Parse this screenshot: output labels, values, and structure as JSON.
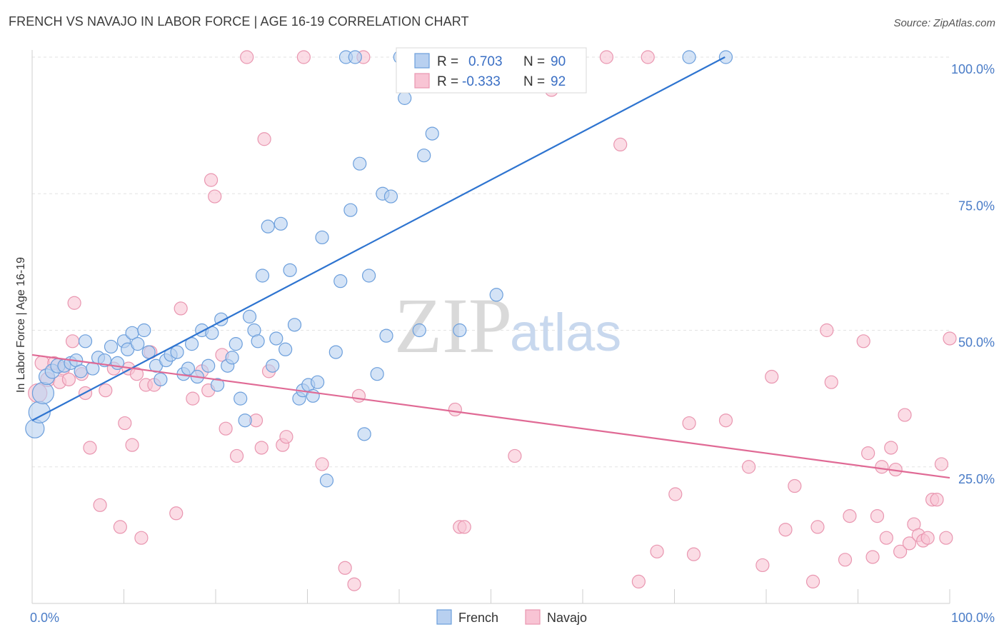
{
  "title": "FRENCH VS NAVAJO IN LABOR FORCE | AGE 16-19 CORRELATION CHART",
  "source": "Source: ZipAtlas.com",
  "watermark": {
    "zip": "ZIP",
    "atlas": "atlas"
  },
  "colors": {
    "french_fill": "#b8d0f0",
    "french_stroke": "#6c9fdc",
    "french_line": "#2e74d0",
    "navajo_fill": "#f8c4d4",
    "navajo_stroke": "#e996b0",
    "navajo_line": "#e06a95",
    "grid": "#e3e3e3",
    "tick_label": "#4a7cc7"
  },
  "legend_box": {
    "french": {
      "r_label": "R =",
      "r_value": "0.703",
      "n_label": "N =",
      "n_value": "90"
    },
    "navajo": {
      "r_label": "R =",
      "r_value": "-0.333",
      "n_label": "N =",
      "n_value": "92"
    }
  },
  "chart_data": {
    "type": "scatter",
    "title": "FRENCH VS NAVAJO IN LABOR FORCE | AGE 16-19 CORRELATION CHART",
    "xlabel": "",
    "ylabel": "In Labor Force | Age 16-19",
    "xlim": [
      0,
      100
    ],
    "ylim": [
      0,
      100
    ],
    "x_tick_labels": [
      {
        "value": 0,
        "label": "0.0%"
      },
      {
        "value": 100,
        "label": "100.0%"
      }
    ],
    "y_tick_labels": [
      {
        "value": 25,
        "label": "25.0%"
      },
      {
        "value": 50,
        "label": "50.0%"
      },
      {
        "value": 75,
        "label": "75.0%"
      },
      {
        "value": 100,
        "label": "100.0%"
      }
    ],
    "grid": true,
    "legend_position": "bottom",
    "series": [
      {
        "name": "French",
        "trend": {
          "x": [
            0,
            75.5
          ],
          "y": [
            33.5,
            100
          ]
        },
        "points": [
          {
            "x": 0.3,
            "y": 32,
            "s": 12
          },
          {
            "x": 0.8,
            "y": 35,
            "s": 14
          },
          {
            "x": 1.2,
            "y": 38.5,
            "s": 14
          },
          {
            "x": 1.6,
            "y": 41.5,
            "s": 10
          },
          {
            "x": 2.2,
            "y": 42.5,
            "s": 9
          },
          {
            "x": 2.8,
            "y": 43.5,
            "s": 9
          },
          {
            "x": 3.5,
            "y": 43.5,
            "s": 8
          },
          {
            "x": 4.2,
            "y": 44,
            "s": 8
          },
          {
            "x": 4.8,
            "y": 44.5,
            "s": 8
          },
          {
            "x": 5.3,
            "y": 42.5,
            "s": 8
          },
          {
            "x": 5.8,
            "y": 48,
            "s": 8
          },
          {
            "x": 6.6,
            "y": 43,
            "s": 8
          },
          {
            "x": 7.2,
            "y": 45,
            "s": 8
          },
          {
            "x": 7.9,
            "y": 44.5,
            "s": 8
          },
          {
            "x": 8.6,
            "y": 47,
            "s": 8
          },
          {
            "x": 9.3,
            "y": 44,
            "s": 8
          },
          {
            "x": 10,
            "y": 48,
            "s": 8
          },
          {
            "x": 10.4,
            "y": 46.5,
            "s": 8
          },
          {
            "x": 10.9,
            "y": 49.5,
            "s": 8
          },
          {
            "x": 11.5,
            "y": 47.5,
            "s": 8
          },
          {
            "x": 12.2,
            "y": 50,
            "s": 8
          },
          {
            "x": 12.7,
            "y": 46,
            "s": 8
          },
          {
            "x": 13.5,
            "y": 43.5,
            "s": 8
          },
          {
            "x": 14,
            "y": 41,
            "s": 8
          },
          {
            "x": 14.6,
            "y": 44.5,
            "s": 8
          },
          {
            "x": 15.1,
            "y": 45.5,
            "s": 8
          },
          {
            "x": 15.8,
            "y": 46,
            "s": 8
          },
          {
            "x": 16.5,
            "y": 42,
            "s": 8
          },
          {
            "x": 17,
            "y": 43,
            "s": 8
          },
          {
            "x": 17.4,
            "y": 47.5,
            "s": 8
          },
          {
            "x": 18,
            "y": 41.5,
            "s": 8
          },
          {
            "x": 18.5,
            "y": 50,
            "s": 8
          },
          {
            "x": 19.2,
            "y": 43.5,
            "s": 8
          },
          {
            "x": 19.6,
            "y": 49.5,
            "s": 8
          },
          {
            "x": 20.2,
            "y": 40,
            "s": 8
          },
          {
            "x": 20.6,
            "y": 52,
            "s": 8
          },
          {
            "x": 21.3,
            "y": 43.5,
            "s": 8
          },
          {
            "x": 21.8,
            "y": 45,
            "s": 8
          },
          {
            "x": 22.2,
            "y": 47.5,
            "s": 8
          },
          {
            "x": 22.7,
            "y": 37.5,
            "s": 8
          },
          {
            "x": 23.2,
            "y": 33.5,
            "s": 8
          },
          {
            "x": 23.7,
            "y": 52.5,
            "s": 8
          },
          {
            "x": 24.2,
            "y": 50,
            "s": 8
          },
          {
            "x": 24.6,
            "y": 48,
            "s": 8
          },
          {
            "x": 25.1,
            "y": 60,
            "s": 8
          },
          {
            "x": 25.7,
            "y": 69,
            "s": 8
          },
          {
            "x": 26.2,
            "y": 43.5,
            "s": 8
          },
          {
            "x": 26.6,
            "y": 48.5,
            "s": 8
          },
          {
            "x": 27.1,
            "y": 69.5,
            "s": 8
          },
          {
            "x": 27.6,
            "y": 46.5,
            "s": 8
          },
          {
            "x": 28.1,
            "y": 61,
            "s": 8
          },
          {
            "x": 28.6,
            "y": 51,
            "s": 8
          },
          {
            "x": 29.1,
            "y": 37.5,
            "s": 8
          },
          {
            "x": 29.5,
            "y": 39,
            "s": 8
          },
          {
            "x": 30.1,
            "y": 40,
            "s": 8
          },
          {
            "x": 30.6,
            "y": 38,
            "s": 8
          },
          {
            "x": 31.1,
            "y": 40.5,
            "s": 8
          },
          {
            "x": 31.6,
            "y": 67,
            "s": 8
          },
          {
            "x": 32.1,
            "y": 22.5,
            "s": 8
          },
          {
            "x": 33.1,
            "y": 46,
            "s": 8
          },
          {
            "x": 33.6,
            "y": 59,
            "s": 8
          },
          {
            "x": 34.2,
            "y": 100,
            "s": 8
          },
          {
            "x": 34.7,
            "y": 72,
            "s": 8
          },
          {
            "x": 35.2,
            "y": 100,
            "s": 8
          },
          {
            "x": 35.7,
            "y": 80.5,
            "s": 8
          },
          {
            "x": 36.2,
            "y": 31,
            "s": 8
          },
          {
            "x": 36.7,
            "y": 60,
            "s": 8
          },
          {
            "x": 37.6,
            "y": 42,
            "s": 8
          },
          {
            "x": 38.2,
            "y": 75,
            "s": 8
          },
          {
            "x": 38.6,
            "y": 49,
            "s": 8
          },
          {
            "x": 39.1,
            "y": 74.5,
            "s": 8
          },
          {
            "x": 40.1,
            "y": 100,
            "s": 8
          },
          {
            "x": 40.6,
            "y": 92.5,
            "s": 8
          },
          {
            "x": 41.1,
            "y": 100,
            "s": 8
          },
          {
            "x": 41.6,
            "y": 100,
            "s": 8
          },
          {
            "x": 42.2,
            "y": 50,
            "s": 8
          },
          {
            "x": 42.7,
            "y": 82,
            "s": 8
          },
          {
            "x": 43.1,
            "y": 100,
            "s": 8
          },
          {
            "x": 43.6,
            "y": 86,
            "s": 8
          },
          {
            "x": 44.6,
            "y": 100,
            "s": 8
          },
          {
            "x": 45.1,
            "y": 100,
            "s": 8
          },
          {
            "x": 46.1,
            "y": 100,
            "s": 8
          },
          {
            "x": 46.6,
            "y": 50,
            "s": 8
          },
          {
            "x": 48.6,
            "y": 100,
            "s": 8
          },
          {
            "x": 50.6,
            "y": 56.5,
            "s": 8
          },
          {
            "x": 52.6,
            "y": 100,
            "s": 8
          },
          {
            "x": 55.1,
            "y": 100,
            "s": 8
          },
          {
            "x": 56.1,
            "y": 100,
            "s": 8
          },
          {
            "x": 71.6,
            "y": 100,
            "s": 8
          },
          {
            "x": 75.6,
            "y": 100,
            "s": 8
          }
        ]
      },
      {
        "name": "Navajo",
        "trend": {
          "x": [
            0,
            100
          ],
          "y": [
            45.5,
            23
          ]
        },
        "points": [
          {
            "x": 0.6,
            "y": 38.5,
            "s": 12
          },
          {
            "x": 1.1,
            "y": 44,
            "s": 9
          },
          {
            "x": 1.7,
            "y": 41,
            "s": 9
          },
          {
            "x": 2.4,
            "y": 44,
            "s": 8
          },
          {
            "x": 3,
            "y": 40.5,
            "s": 8
          },
          {
            "x": 3.4,
            "y": 43,
            "s": 8
          },
          {
            "x": 4,
            "y": 41,
            "s": 8
          },
          {
            "x": 4.4,
            "y": 48,
            "s": 8
          },
          {
            "x": 4.6,
            "y": 55,
            "s": 8
          },
          {
            "x": 5.4,
            "y": 42,
            "s": 8
          },
          {
            "x": 5.8,
            "y": 38.5,
            "s": 8
          },
          {
            "x": 6.3,
            "y": 28.5,
            "s": 8
          },
          {
            "x": 7.4,
            "y": 18,
            "s": 8
          },
          {
            "x": 8,
            "y": 39,
            "s": 8
          },
          {
            "x": 8.9,
            "y": 43,
            "s": 8
          },
          {
            "x": 9.6,
            "y": 14,
            "s": 8
          },
          {
            "x": 10.1,
            "y": 33,
            "s": 8
          },
          {
            "x": 10.5,
            "y": 43,
            "s": 8
          },
          {
            "x": 10.9,
            "y": 29,
            "s": 8
          },
          {
            "x": 11.4,
            "y": 42,
            "s": 8
          },
          {
            "x": 11.9,
            "y": 12,
            "s": 8
          },
          {
            "x": 12.4,
            "y": 40,
            "s": 8
          },
          {
            "x": 12.9,
            "y": 46,
            "s": 8
          },
          {
            "x": 13.3,
            "y": 40,
            "s": 8
          },
          {
            "x": 15.7,
            "y": 16.5,
            "s": 8
          },
          {
            "x": 16.2,
            "y": 54,
            "s": 8
          },
          {
            "x": 17.5,
            "y": 37.5,
            "s": 8
          },
          {
            "x": 18.5,
            "y": 42.5,
            "s": 8
          },
          {
            "x": 19.2,
            "y": 39,
            "s": 8
          },
          {
            "x": 19.5,
            "y": 77.5,
            "s": 8
          },
          {
            "x": 19.9,
            "y": 74.5,
            "s": 8
          },
          {
            "x": 20.7,
            "y": 45.5,
            "s": 8
          },
          {
            "x": 21.1,
            "y": 32,
            "s": 8
          },
          {
            "x": 22.3,
            "y": 27,
            "s": 8
          },
          {
            "x": 23.4,
            "y": 100,
            "s": 8
          },
          {
            "x": 24.4,
            "y": 33.5,
            "s": 8
          },
          {
            "x": 25,
            "y": 28.5,
            "s": 8
          },
          {
            "x": 25.3,
            "y": 85,
            "s": 8
          },
          {
            "x": 25.8,
            "y": 42.5,
            "s": 8
          },
          {
            "x": 27.3,
            "y": 29,
            "s": 8
          },
          {
            "x": 27.7,
            "y": 30.5,
            "s": 8
          },
          {
            "x": 29.6,
            "y": 100,
            "s": 8
          },
          {
            "x": 31.6,
            "y": 25.5,
            "s": 8
          },
          {
            "x": 34.1,
            "y": 6.5,
            "s": 8
          },
          {
            "x": 35.1,
            "y": 3.5,
            "s": 8
          },
          {
            "x": 35.6,
            "y": 38,
            "s": 8
          },
          {
            "x": 36.1,
            "y": 100,
            "s": 8
          },
          {
            "x": 46.1,
            "y": 35.5,
            "s": 8
          },
          {
            "x": 46.6,
            "y": 14,
            "s": 8
          },
          {
            "x": 47.1,
            "y": 14,
            "s": 8
          },
          {
            "x": 52.6,
            "y": 27,
            "s": 8
          },
          {
            "x": 56.6,
            "y": 94,
            "s": 8
          },
          {
            "x": 62.6,
            "y": 100,
            "s": 8
          },
          {
            "x": 64.1,
            "y": 84,
            "s": 8
          },
          {
            "x": 66.1,
            "y": 4,
            "s": 8
          },
          {
            "x": 67.1,
            "y": 100,
            "s": 8
          },
          {
            "x": 68.1,
            "y": 9.5,
            "s": 8
          },
          {
            "x": 70.1,
            "y": 20,
            "s": 8
          },
          {
            "x": 71.6,
            "y": 33,
            "s": 8
          },
          {
            "x": 72.1,
            "y": 9,
            "s": 8
          },
          {
            "x": 75.6,
            "y": 33.5,
            "s": 8
          },
          {
            "x": 78.1,
            "y": 25,
            "s": 8
          },
          {
            "x": 79.6,
            "y": 7,
            "s": 8
          },
          {
            "x": 80.6,
            "y": 41.5,
            "s": 8
          },
          {
            "x": 82.1,
            "y": 13.5,
            "s": 8
          },
          {
            "x": 83.1,
            "y": 21.5,
            "s": 8
          },
          {
            "x": 85.1,
            "y": 4,
            "s": 8
          },
          {
            "x": 85.6,
            "y": 14,
            "s": 8
          },
          {
            "x": 86.6,
            "y": 50,
            "s": 8
          },
          {
            "x": 87.1,
            "y": 40.5,
            "s": 8
          },
          {
            "x": 88.6,
            "y": 8,
            "s": 8
          },
          {
            "x": 89.1,
            "y": 16,
            "s": 8
          },
          {
            "x": 90.6,
            "y": 48,
            "s": 8
          },
          {
            "x": 91.1,
            "y": 27.5,
            "s": 8
          },
          {
            "x": 91.6,
            "y": 8.5,
            "s": 8
          },
          {
            "x": 92.1,
            "y": 16,
            "s": 8
          },
          {
            "x": 92.6,
            "y": 25,
            "s": 8
          },
          {
            "x": 93.1,
            "y": 12,
            "s": 8
          },
          {
            "x": 93.6,
            "y": 28.5,
            "s": 8
          },
          {
            "x": 94.1,
            "y": 24.5,
            "s": 8
          },
          {
            "x": 94.6,
            "y": 9.5,
            "s": 8
          },
          {
            "x": 95.1,
            "y": 34.5,
            "s": 8
          },
          {
            "x": 95.6,
            "y": 11,
            "s": 8
          },
          {
            "x": 96.1,
            "y": 14.5,
            "s": 8
          },
          {
            "x": 96.6,
            "y": 12.5,
            "s": 8
          },
          {
            "x": 97.1,
            "y": 11.5,
            "s": 8
          },
          {
            "x": 97.6,
            "y": 12,
            "s": 8
          },
          {
            "x": 98.1,
            "y": 19,
            "s": 8
          },
          {
            "x": 98.6,
            "y": 19,
            "s": 8
          },
          {
            "x": 99.1,
            "y": 25.5,
            "s": 8
          },
          {
            "x": 99.6,
            "y": 12,
            "s": 8
          },
          {
            "x": 100,
            "y": 48.5,
            "s": 8
          }
        ]
      }
    ]
  }
}
